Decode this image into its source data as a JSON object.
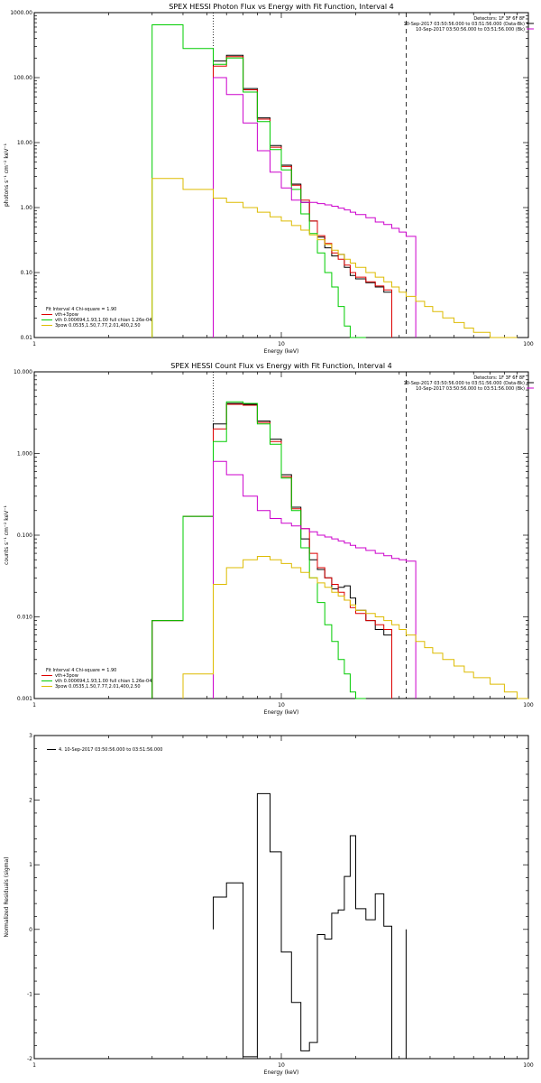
{
  "colors": {
    "total": "#000000",
    "fit": "#dd0000",
    "vth": "#00cc00",
    "bpow": "#ddbb00",
    "bk": "#cc00cc"
  },
  "chart_data": [
    {
      "type": "line",
      "title": "SPEX HESSI Photon Flux vs Energy with Fit Function, Interval 4",
      "xlabel": "Energy (keV)",
      "ylabel": "photons s⁻¹ cm⁻² keV⁻¹",
      "xlim": [
        1,
        100
      ],
      "ylim": [
        0.01,
        1000
      ],
      "xlog": true,
      "ylog": true,
      "x_ticks": [
        {
          "v": 1,
          "label": "1"
        },
        {
          "v": 10,
          "label": "10"
        },
        {
          "v": 100,
          "label": "100"
        }
      ],
      "y_ticks": [
        {
          "v": 1000,
          "label": "1000.00"
        },
        {
          "v": 100,
          "label": "100.00"
        },
        {
          "v": 10,
          "label": "10.00"
        },
        {
          "v": 1,
          "label": "1.00"
        },
        {
          "v": 0.1,
          "label": "0.10"
        },
        {
          "v": 0.01,
          "label": "0.01"
        }
      ],
      "vlines": [
        {
          "x": 5.3,
          "style": "dotted"
        },
        {
          "x": 32,
          "style": "dashed"
        }
      ],
      "header": [
        "Detectors: 1F 3F 6F 8F",
        "10-Sep-2017 03:50:56.000 to 03:51:56.000 (Data-Bk)",
        "10-Sep-2017 03:50:56.000 to 03:51:56.000 (Bk)"
      ],
      "legend": [
        "Fit Interval 4   Chi-square = 1.90",
        "vth+3pow",
        "vth 0.000694,1.93,1.00  full chian 1.26e-04",
        "3pow 0.0535,1.50,7.77,2.01,400,2.50"
      ],
      "edges": [
        3,
        3.5,
        4,
        4.5,
        5.3,
        6,
        7,
        8,
        9,
        10,
        11,
        12,
        13,
        14,
        15,
        16,
        17,
        18,
        19,
        20,
        22,
        24,
        26,
        28,
        30,
        32,
        35,
        38,
        41,
        45,
        50,
        55,
        60,
        70,
        80,
        90,
        100
      ],
      "series": [
        {
          "color": "total",
          "values": [
            null,
            null,
            null,
            null,
            180,
            220,
            68,
            24,
            9,
            4.5,
            2.3,
            1.2,
            0.62,
            0.35,
            0.24,
            0.18,
            0.19,
            0.12,
            0.09,
            0.08,
            0.07,
            0.06,
            0.05,
            null,
            null,
            null,
            null,
            null,
            null,
            null,
            null,
            null,
            null,
            null,
            null,
            null
          ]
        },
        {
          "color": "fit",
          "values": [
            null,
            null,
            null,
            null,
            150,
            210,
            65,
            23,
            8.5,
            4.3,
            2.2,
            1.3,
            0.62,
            0.37,
            0.28,
            0.2,
            0.16,
            0.13,
            0.1,
            0.085,
            0.072,
            0.062,
            0.054,
            null,
            null,
            null,
            null,
            null,
            null,
            null,
            null,
            null,
            null,
            null,
            null,
            null
          ]
        },
        {
          "color": "vth",
          "values": [
            650,
            650,
            280,
            280,
            160,
            200,
            60,
            21,
            7.8,
            3.8,
            1.9,
            0.8,
            0.4,
            0.2,
            0.1,
            0.06,
            0.03,
            0.015,
            0.008,
            0.004,
            null,
            null,
            null,
            null,
            null,
            null,
            null,
            null,
            null,
            null,
            null,
            null,
            null,
            null,
            null,
            null
          ]
        },
        {
          "color": "bk",
          "values": [
            null,
            null,
            null,
            null,
            100,
            55,
            20,
            7.5,
            3.5,
            2.0,
            1.3,
            1.2,
            1.2,
            1.15,
            1.1,
            1.05,
            0.98,
            0.92,
            0.85,
            0.78,
            0.7,
            0.6,
            0.55,
            0.48,
            0.42,
            0.36,
            null,
            null,
            null,
            null,
            null,
            null,
            null,
            null,
            null,
            null
          ]
        },
        {
          "color": "bpow",
          "values": [
            2.8,
            2.8,
            1.9,
            1.9,
            1.4,
            1.2,
            1.0,
            0.85,
            0.72,
            0.62,
            0.53,
            0.45,
            0.38,
            0.32,
            0.27,
            0.22,
            0.19,
            0.16,
            0.14,
            0.12,
            0.1,
            0.085,
            0.072,
            0.06,
            0.05,
            0.043,
            0.036,
            0.03,
            0.025,
            0.02,
            0.017,
            0.014,
            0.012,
            0.01,
            0.009,
            null
          ]
        }
      ]
    },
    {
      "type": "line",
      "title": "SPEX HESSI Count Flux vs Energy with Fit Function, Interval 4",
      "xlabel": "Energy (keV)",
      "ylabel": "counts s⁻¹ cm⁻² keV⁻¹",
      "xlim": [
        1,
        100
      ],
      "ylim": [
        0.001,
        10
      ],
      "xlog": true,
      "ylog": true,
      "x_ticks": [
        {
          "v": 1,
          "label": "1"
        },
        {
          "v": 10,
          "label": "10"
        },
        {
          "v": 100,
          "label": "100"
        }
      ],
      "y_ticks": [
        {
          "v": 10,
          "label": "10.000"
        },
        {
          "v": 1,
          "label": "1.000"
        },
        {
          "v": 0.1,
          "label": "0.100"
        },
        {
          "v": 0.01,
          "label": "0.010"
        },
        {
          "v": 0.001,
          "label": "0.001"
        }
      ],
      "vlines": [
        {
          "x": 5.3,
          "style": "dotted"
        },
        {
          "x": 32,
          "style": "dashed"
        }
      ],
      "header": [
        "Detectors: 1F 3F 6F 8F",
        "10-Sep-2017 03:50:56.000 to 03:51:56.000 (Data-Bk)",
        "10-Sep-2017 03:50:56.000 to 03:51:56.000 (Bk)"
      ],
      "legend": [
        "Fit Interval 4   Chi-square = 1.90",
        "vth+3pow",
        "vth 0.000694,1.93,1.00  full chian 1.26e-04",
        "3pow 0.0535,1.50,7.77,2.01,400,2.50"
      ],
      "edges": [
        3,
        3.5,
        4,
        4.5,
        5.3,
        6,
        7,
        8,
        9,
        10,
        11,
        12,
        13,
        14,
        15,
        16,
        17,
        18,
        19,
        20,
        22,
        24,
        26,
        28,
        30,
        32,
        35,
        38,
        41,
        45,
        50,
        55,
        60,
        70,
        80,
        90,
        100
      ],
      "series": [
        {
          "color": "total",
          "values": [
            0.009,
            0.009,
            0.17,
            0.17,
            2.3,
            4.1,
            4.0,
            2.5,
            1.5,
            0.55,
            0.22,
            0.09,
            0.05,
            0.038,
            0.03,
            0.022,
            0.023,
            0.024,
            0.017,
            0.012,
            0.009,
            0.007,
            0.006,
            null,
            null,
            null,
            null,
            null,
            null,
            null,
            null,
            null,
            null,
            null,
            null,
            null
          ]
        },
        {
          "color": "fit",
          "values": [
            0.009,
            0.009,
            0.17,
            0.17,
            2.0,
            4.0,
            3.9,
            2.4,
            1.4,
            0.52,
            0.21,
            0.12,
            0.06,
            0.04,
            0.03,
            0.025,
            0.02,
            0.016,
            0.013,
            0.011,
            0.009,
            0.008,
            0.007,
            null,
            null,
            null,
            null,
            null,
            null,
            null,
            null,
            null,
            null,
            null,
            null,
            null
          ]
        },
        {
          "color": "vth",
          "values": [
            0.009,
            0.009,
            0.17,
            0.17,
            1.4,
            4.3,
            4.1,
            2.3,
            1.3,
            0.5,
            0.2,
            0.07,
            0.03,
            0.015,
            0.008,
            0.005,
            0.003,
            0.002,
            0.0012,
            0.001,
            null,
            null,
            null,
            null,
            null,
            null,
            null,
            null,
            null,
            null,
            null,
            null,
            null,
            null,
            null,
            null
          ]
        },
        {
          "color": "bk",
          "values": [
            null,
            null,
            null,
            null,
            0.8,
            0.55,
            0.3,
            0.2,
            0.16,
            0.14,
            0.13,
            0.12,
            0.11,
            0.1,
            0.095,
            0.09,
            0.085,
            0.08,
            0.075,
            0.07,
            0.065,
            0.06,
            0.056,
            0.052,
            0.05,
            0.048,
            null,
            null,
            null,
            null,
            null,
            null,
            null,
            null,
            null,
            null
          ]
        },
        {
          "color": "bpow",
          "values": [
            null,
            null,
            0.002,
            0.002,
            0.025,
            0.04,
            0.05,
            0.055,
            0.05,
            0.045,
            0.04,
            0.035,
            0.03,
            0.026,
            0.023,
            0.02,
            0.018,
            0.016,
            0.014,
            0.012,
            0.011,
            0.01,
            0.009,
            0.008,
            0.007,
            0.006,
            0.005,
            0.0042,
            0.0036,
            0.003,
            0.0025,
            0.0021,
            0.0018,
            0.0015,
            0.0012,
            0.001
          ]
        }
      ]
    },
    {
      "type": "line",
      "title": "",
      "xlabel": "Energy (keV)",
      "ylabel": "Normalized Residuals (sigma)",
      "xlim": [
        1,
        100
      ],
      "ylim": [
        -2,
        3
      ],
      "xlog": true,
      "ylog": false,
      "x_ticks": [
        {
          "v": 1,
          "label": "1"
        },
        {
          "v": 10,
          "label": "10"
        },
        {
          "v": 100,
          "label": "100"
        }
      ],
      "y_ticks": [
        {
          "v": 3,
          "label": "3"
        },
        {
          "v": 2,
          "label": "2"
        },
        {
          "v": 1,
          "label": "1"
        },
        {
          "v": 0,
          "label": "0"
        },
        {
          "v": -1,
          "label": "-1"
        },
        {
          "v": -2,
          "label": "-2"
        }
      ],
      "vlines": [],
      "header": [],
      "legend": [
        "4. 10-Sep-2017 03:50:56.000 to 03:51:56.000"
      ],
      "edges": [
        5.3,
        6,
        7,
        8,
        9,
        10,
        11,
        12,
        13,
        14,
        15,
        16,
        17,
        18,
        19,
        20,
        22,
        24,
        26,
        28,
        30,
        32
      ],
      "series": [
        {
          "color": "total",
          "values": [
            0.5,
            0.72,
            -1.97,
            2.1,
            1.2,
            -0.35,
            -1.13,
            -1.88,
            -1.75,
            -0.08,
            -0.15,
            0.25,
            0.3,
            0.82,
            1.45,
            0.32,
            0.15,
            0.55,
            0.05,
            -2.0,
            -2.0
          ]
        }
      ]
    }
  ]
}
